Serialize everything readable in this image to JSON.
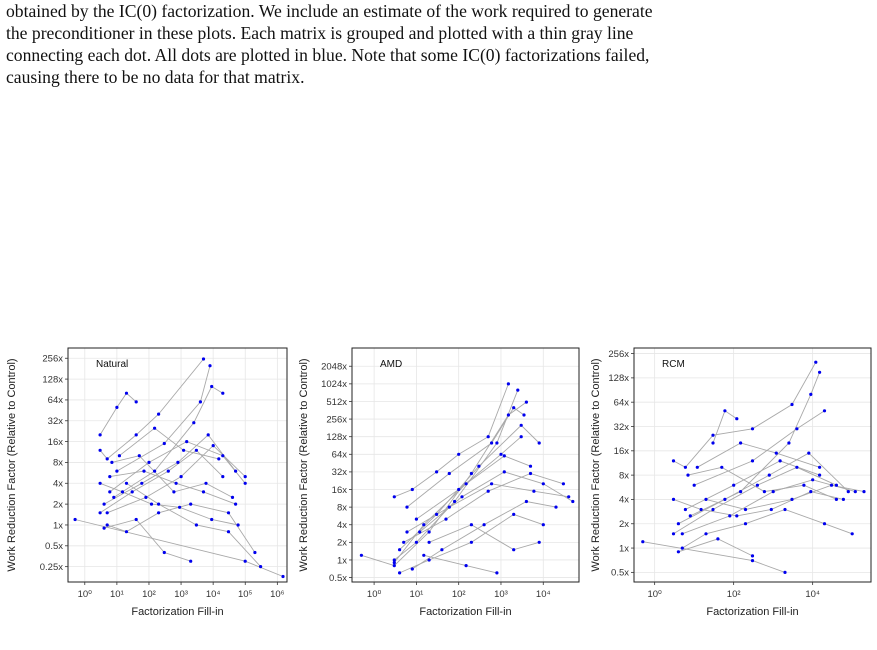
{
  "paragraph": [
    "obtained by the IC(0) factorization. We include an estimate of the work required to generate",
    "the preconditioner in these plots. Each matrix is grouped and plotted with a thin gray line",
    "connecting each dot. All dots are plotted in blue. Note that some IC(0) factorizations failed,",
    "causing there to be no data for that matrix."
  ],
  "colors": {
    "dot": "#0000ee",
    "line": "#a9a9a9",
    "grid": "#e6e6e6",
    "border": "#222222"
  },
  "chart_data": [
    {
      "type": "scatter",
      "label": "Natural",
      "xlabel": "Factorization Fill-in",
      "ylabel": "Work Reduction Factor (Relative to Control)",
      "xscale": "log10",
      "yscale": "log2",
      "xlim": [
        0.3,
        2000000
      ],
      "ylim": [
        0.15,
        360
      ],
      "xticks": [
        1,
        10,
        100,
        1000,
        10000,
        100000,
        1000000
      ],
      "xtick_labels": [
        "10⁰",
        "10¹",
        "10²",
        "10³",
        "10⁴",
        "10⁵",
        "10⁶"
      ],
      "yticks": [
        0.25,
        0.5,
        1,
        2,
        4,
        8,
        16,
        32,
        64,
        128,
        256
      ],
      "ytick_labels": [
        "0.25x",
        "0.5x",
        "1x",
        "2x",
        "4x",
        "8x",
        "16x",
        "32x",
        "64x",
        "128x",
        "256x"
      ],
      "groups": [
        [
          [
            0.5,
            1.2
          ],
          [
            100000,
            0.3
          ],
          [
            1500000,
            0.18
          ]
        ],
        [
          [
            3,
            12
          ],
          [
            5,
            9
          ],
          [
            40,
            20
          ],
          [
            200,
            40
          ],
          [
            5000,
            250
          ]
        ],
        [
          [
            3,
            1.5
          ],
          [
            30,
            3
          ],
          [
            400,
            6
          ],
          [
            3000,
            12
          ],
          [
            20000,
            5
          ]
        ],
        [
          [
            4,
            2
          ],
          [
            60,
            4
          ],
          [
            800,
            8
          ],
          [
            7000,
            20
          ],
          [
            50000,
            6
          ]
        ],
        [
          [
            5,
            1
          ],
          [
            20,
            0.8
          ],
          [
            200,
            1.5
          ],
          [
            2000,
            2
          ],
          [
            30000,
            1.5
          ],
          [
            200000,
            0.4
          ]
        ],
        [
          [
            6,
            3
          ],
          [
            100,
            8
          ],
          [
            1500,
            16
          ],
          [
            20000,
            10
          ],
          [
            100000,
            4
          ]
        ],
        [
          [
            3,
            20
          ],
          [
            10,
            50
          ],
          [
            20,
            80
          ],
          [
            40,
            60
          ]
        ],
        [
          [
            8,
            2.5
          ],
          [
            150,
            6
          ],
          [
            2500,
            30
          ],
          [
            9000,
            100
          ],
          [
            20000,
            80
          ]
        ],
        [
          [
            4,
            0.9
          ],
          [
            40,
            1.2
          ],
          [
            300,
            0.4
          ],
          [
            2000,
            0.3
          ]
        ],
        [
          [
            10,
            6
          ],
          [
            300,
            15
          ],
          [
            4000,
            60
          ],
          [
            8000,
            200
          ]
        ],
        [
          [
            3,
            4
          ],
          [
            15,
            3
          ],
          [
            120,
            2
          ],
          [
            900,
            1.8
          ],
          [
            9000,
            1.2
          ],
          [
            60000,
            1
          ]
        ],
        [
          [
            7,
            8
          ],
          [
            50,
            10
          ],
          [
            600,
            3
          ],
          [
            6000,
            4
          ],
          [
            40000,
            2.5
          ]
        ],
        [
          [
            5,
            1.5
          ],
          [
            80,
            2.5
          ],
          [
            1000,
            5
          ],
          [
            10000,
            14
          ],
          [
            100000,
            5
          ]
        ],
        [
          [
            20,
            4
          ],
          [
            200,
            2
          ],
          [
            3000,
            1
          ],
          [
            30000,
            0.8
          ],
          [
            300000,
            0.25
          ]
        ],
        [
          [
            12,
            10
          ],
          [
            150,
            25
          ],
          [
            1200,
            12
          ],
          [
            15000,
            9
          ]
        ],
        [
          [
            6,
            5
          ],
          [
            70,
            6
          ],
          [
            700,
            4
          ],
          [
            5000,
            3
          ],
          [
            50000,
            2
          ]
        ]
      ]
    },
    {
      "type": "scatter",
      "label": "AMD",
      "xlabel": "Factorization Fill-in",
      "ylabel": "Work Reduction Factor (Relative to Control)",
      "xscale": "log10",
      "yscale": "log2",
      "xlim": [
        0.3,
        70000
      ],
      "ylim": [
        0.42,
        4200
      ],
      "xticks": [
        1,
        10,
        100,
        1000,
        10000
      ],
      "xtick_labels": [
        "10⁰",
        "10¹",
        "10²",
        "10³",
        "10⁴"
      ],
      "yticks": [
        0.5,
        1,
        2,
        4,
        8,
        16,
        32,
        64,
        128,
        256,
        512,
        1024,
        2048
      ],
      "ytick_labels": [
        "0.5x",
        "1x",
        "2x",
        "4x",
        "8x",
        "16x",
        "32x",
        "64x",
        "128x",
        "256x",
        "512x",
        "1024x",
        "2048x"
      ],
      "groups": [
        [
          [
            0.5,
            1.2
          ],
          [
            3,
            0.8
          ],
          [
            20,
            3
          ],
          [
            200,
            30
          ],
          [
            1500,
            300
          ],
          [
            4000,
            500
          ]
        ],
        [
          [
            3,
            1
          ],
          [
            10,
            2
          ],
          [
            80,
            10
          ],
          [
            800,
            100
          ],
          [
            2500,
            800
          ]
        ],
        [
          [
            3,
            0.9
          ],
          [
            15,
            4
          ],
          [
            150,
            20
          ],
          [
            1200,
            60
          ],
          [
            5000,
            40
          ]
        ],
        [
          [
            4,
            1.5
          ],
          [
            30,
            6
          ],
          [
            300,
            40
          ],
          [
            3000,
            200
          ],
          [
            8000,
            100
          ]
        ],
        [
          [
            5,
            2
          ],
          [
            50,
            5
          ],
          [
            500,
            15
          ],
          [
            5000,
            30
          ],
          [
            30000,
            20
          ]
        ],
        [
          [
            6,
            3
          ],
          [
            60,
            8
          ],
          [
            600,
            20
          ],
          [
            6000,
            15
          ],
          [
            40000,
            12
          ]
        ],
        [
          [
            8,
            0.7
          ],
          [
            40,
            1.5
          ],
          [
            400,
            4
          ],
          [
            4000,
            10
          ],
          [
            20000,
            8
          ]
        ],
        [
          [
            10,
            5
          ],
          [
            100,
            16
          ],
          [
            1000,
            64
          ],
          [
            3000,
            128
          ]
        ],
        [
          [
            3,
            12
          ],
          [
            8,
            16
          ],
          [
            30,
            32
          ],
          [
            100,
            64
          ],
          [
            500,
            128
          ],
          [
            1500,
            1024
          ]
        ],
        [
          [
            4,
            0.6
          ],
          [
            20,
            1
          ],
          [
            200,
            2
          ],
          [
            2000,
            6
          ],
          [
            10000,
            4
          ]
        ],
        [
          [
            12,
            3
          ],
          [
            120,
            12
          ],
          [
            1200,
            32
          ],
          [
            10000,
            20
          ],
          [
            50000,
            10
          ]
        ],
        [
          [
            20,
            2
          ],
          [
            200,
            4
          ],
          [
            2000,
            1.5
          ],
          [
            8000,
            2
          ]
        ],
        [
          [
            6,
            8
          ],
          [
            60,
            30
          ],
          [
            600,
            100
          ],
          [
            2000,
            400
          ],
          [
            3500,
            300
          ]
        ],
        [
          [
            15,
            1.2
          ],
          [
            150,
            0.8
          ],
          [
            800,
            0.6
          ]
        ]
      ]
    },
    {
      "type": "scatter",
      "label": "RCM",
      "xlabel": "Factorization Fill-in",
      "ylabel": "Work Reduction Factor (Relative to Control)",
      "xscale": "log10",
      "yscale": "log2",
      "xlim": [
        0.3,
        300000
      ],
      "ylim": [
        0.38,
        300
      ],
      "xticks": [
        1,
        100,
        10000
      ],
      "xtick_labels": [
        "10⁰",
        "10²",
        "10⁴"
      ],
      "yticks": [
        0.5,
        1,
        2,
        4,
        8,
        16,
        32,
        64,
        128,
        256
      ],
      "ytick_labels": [
        "0.5x",
        "1x",
        "2x",
        "4x",
        "8x",
        "16x",
        "32x",
        "64x",
        "128x",
        "256x"
      ],
      "groups": [
        [
          [
            0.5,
            1.2
          ],
          [
            300,
            0.7
          ],
          [
            2000,
            0.5
          ]
        ],
        [
          [
            3,
            12
          ],
          [
            6,
            10
          ],
          [
            30,
            25
          ],
          [
            300,
            30
          ],
          [
            3000,
            60
          ],
          [
            12000,
            200
          ]
        ],
        [
          [
            3,
            1.5
          ],
          [
            30,
            3
          ],
          [
            400,
            6
          ],
          [
            4000,
            10
          ],
          [
            40000,
            6
          ]
        ],
        [
          [
            4,
            2
          ],
          [
            60,
            4
          ],
          [
            800,
            8
          ],
          [
            8000,
            15
          ],
          [
            80000,
            5
          ]
        ],
        [
          [
            5,
            1
          ],
          [
            20,
            1.5
          ],
          [
            200,
            2
          ],
          [
            2000,
            3
          ],
          [
            20000,
            2
          ],
          [
            100000,
            1.5
          ]
        ],
        [
          [
            6,
            3
          ],
          [
            100,
            6
          ],
          [
            1500,
            12
          ],
          [
            15000,
            8
          ]
        ],
        [
          [
            30,
            20
          ],
          [
            60,
            50
          ],
          [
            120,
            40
          ]
        ],
        [
          [
            8,
            2.5
          ],
          [
            150,
            5
          ],
          [
            2500,
            20
          ],
          [
            9000,
            80
          ],
          [
            15000,
            150
          ]
        ],
        [
          [
            4,
            0.9
          ],
          [
            40,
            1.3
          ],
          [
            300,
            0.8
          ]
        ],
        [
          [
            10,
            6
          ],
          [
            300,
            12
          ],
          [
            4000,
            30
          ],
          [
            20000,
            50
          ]
        ],
        [
          [
            3,
            4
          ],
          [
            15,
            3
          ],
          [
            120,
            2.5
          ],
          [
            900,
            3
          ],
          [
            9000,
            5
          ],
          [
            60000,
            4
          ]
        ],
        [
          [
            7,
            8
          ],
          [
            50,
            10
          ],
          [
            600,
            5
          ],
          [
            6000,
            6
          ],
          [
            40000,
            4
          ]
        ],
        [
          [
            5,
            1.5
          ],
          [
            80,
            2.5
          ],
          [
            1000,
            5
          ],
          [
            10000,
            7
          ],
          [
            120000,
            5
          ]
        ],
        [
          [
            20,
            4
          ],
          [
            200,
            3
          ],
          [
            3000,
            4
          ],
          [
            30000,
            6
          ],
          [
            200000,
            5
          ]
        ],
        [
          [
            12,
            10
          ],
          [
            150,
            20
          ],
          [
            1200,
            15
          ],
          [
            15000,
            10
          ]
        ]
      ]
    }
  ]
}
